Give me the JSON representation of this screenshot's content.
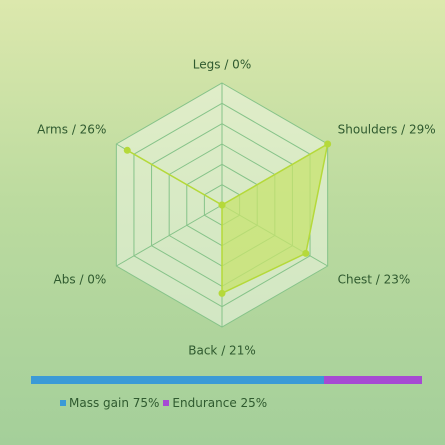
{
  "chart_data": {
    "type": "radar",
    "max": 29,
    "categories": [
      {
        "name": "Legs",
        "value": 0,
        "label": "Legs / 0%"
      },
      {
        "name": "Shoulders",
        "value": 29,
        "label": "Shoulders / 29%"
      },
      {
        "name": "Chest",
        "value": 23,
        "label": "Chest / 23%"
      },
      {
        "name": "Back",
        "value": 21,
        "label": "Back / 21%"
      },
      {
        "name": "Abs",
        "value": 0,
        "label": "Abs / 0%"
      },
      {
        "name": "Arms",
        "value": 26,
        "label": "Arms / 26%"
      }
    ],
    "colors": {
      "fill": "#c7e36d",
      "stroke": "#b5d93a",
      "grid": "#86c389",
      "grid_fill": "#eef5e4"
    },
    "split_bar": [
      {
        "name": "Mass gain",
        "value": 75,
        "label": "Mass gain 75%",
        "color": "#3b9ad6"
      },
      {
        "name": "Endurance",
        "value": 25,
        "label": "Endurance 25%",
        "color": "#a64ad3"
      }
    ]
  }
}
